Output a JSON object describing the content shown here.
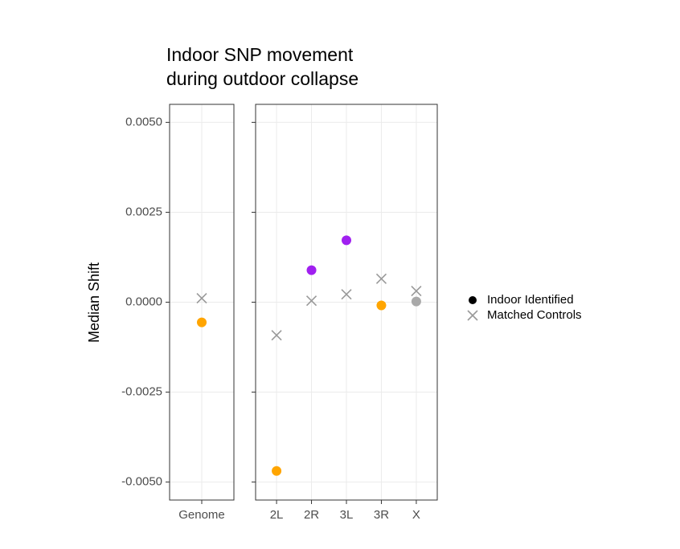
{
  "chart_data": {
    "type": "scatter",
    "title": [
      "Indoor SNP movement",
      "during outdoor collapse"
    ],
    "y_label": "Median Shift",
    "categories": [
      [
        "Genome"
      ],
      [
        "2L",
        "2R",
        "3L",
        "3R",
        "X"
      ]
    ],
    "ylim": [
      -0.0055,
      0.0055
    ],
    "yticks": [
      {
        "value": 0.005,
        "label": "0.0050"
      },
      {
        "value": 0.0025,
        "label": "0.0025"
      },
      {
        "value": 0,
        "label": "0.0000"
      },
      {
        "value": -0.0025,
        "label": "-0.0025"
      },
      {
        "value": -0.005,
        "label": "-0.0050"
      }
    ],
    "grid": true,
    "legend": "right",
    "series": [
      {
        "name": "Indoor Identified",
        "color": "#000000",
        "marker": "circle",
        "values": [
          [
            -0.00056
          ],
          [
            -0.00469,
            0.00089,
            0.00172,
            -9e-05,
            2e-05
          ]
        ],
        "point_colors": [
          [
            "#ffa500"
          ],
          [
            "#ffa500",
            "#a020f0",
            "#a020f0",
            "#ffa500",
            "#a9a9a9"
          ]
        ]
      },
      {
        "name": "Matched Controls",
        "color": "#999999",
        "marker": "cross",
        "values": [
          [
            0.00011
          ],
          [
            -0.00092,
            4e-05,
            0.00022,
            0.00065,
            0.00031
          ]
        ]
      }
    ]
  }
}
